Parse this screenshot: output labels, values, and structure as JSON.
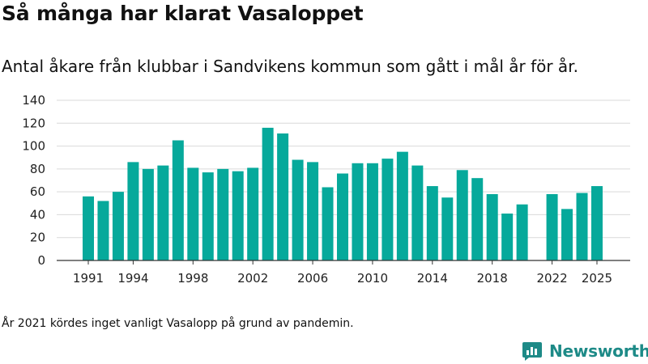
{
  "chart_data": {
    "type": "bar",
    "title": "Så många har klarat Vasaloppet",
    "subtitle": "Antal åkare från klubbar i Sandvikens kommun som gått i mål år för år.",
    "x": [
      1991,
      1992,
      1993,
      1994,
      1995,
      1996,
      1997,
      1998,
      1999,
      2000,
      2001,
      2002,
      2003,
      2004,
      2005,
      2006,
      2007,
      2008,
      2009,
      2010,
      2011,
      2012,
      2013,
      2014,
      2015,
      2016,
      2017,
      2018,
      2019,
      2020,
      2021,
      2022,
      2023,
      2024,
      2025
    ],
    "values": [
      56,
      52,
      60,
      86,
      80,
      83,
      105,
      81,
      77,
      80,
      78,
      81,
      116,
      111,
      88,
      86,
      64,
      76,
      85,
      85,
      89,
      95,
      83,
      65,
      55,
      79,
      72,
      58,
      41,
      49,
      null,
      58,
      45,
      59,
      65
    ],
    "x_tick_labels": [
      "1991",
      "1994",
      "1998",
      "2002",
      "2006",
      "2010",
      "2014",
      "2018",
      "2022",
      "2025"
    ],
    "x_tick_values": [
      1991,
      1994,
      1998,
      2002,
      2006,
      2010,
      2014,
      2018,
      2022,
      2025
    ],
    "y_ticks": [
      0,
      20,
      40,
      60,
      80,
      100,
      120,
      140
    ],
    "ylim": [
      0,
      140
    ],
    "grid": true,
    "bar_color": "#06a99b",
    "footnote": "År 2021 kördes inget vanligt Vasalopp på grund av pandemin."
  },
  "brand": {
    "name": "Newsworthy",
    "color": "#1d8a87",
    "icon": "newsworthy-logo-icon"
  }
}
